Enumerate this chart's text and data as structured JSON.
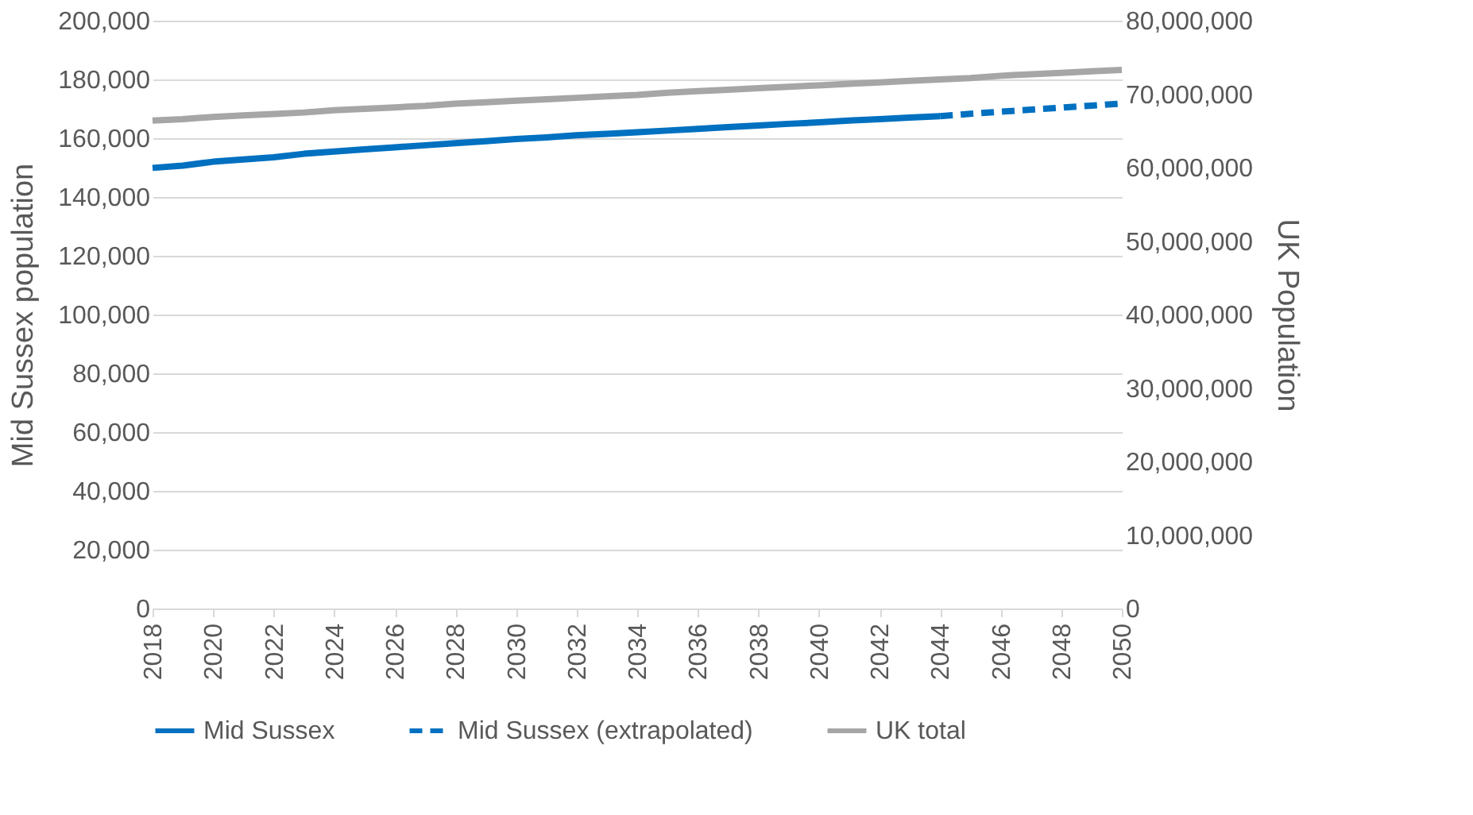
{
  "chart_data": {
    "type": "line",
    "ylabel": "Mid Sussex population",
    "y2label": "UK Population",
    "x": [
      2018,
      2019,
      2020,
      2021,
      2022,
      2023,
      2024,
      2025,
      2026,
      2027,
      2028,
      2029,
      2030,
      2031,
      2032,
      2033,
      2034,
      2035,
      2036,
      2037,
      2038,
      2039,
      2040,
      2041,
      2042,
      2043,
      2044,
      2045,
      2046,
      2047,
      2048,
      2049,
      2050
    ],
    "xlim": [
      2018,
      2050
    ],
    "xticks": [
      2018,
      2020,
      2022,
      2024,
      2026,
      2028,
      2030,
      2032,
      2034,
      2036,
      2038,
      2040,
      2042,
      2044,
      2046,
      2048,
      2050
    ],
    "ylim": [
      0,
      200000
    ],
    "yticks": [
      {
        "value": 0,
        "label": "0"
      },
      {
        "value": 20000,
        "label": "20,000"
      },
      {
        "value": 40000,
        "label": "40,000"
      },
      {
        "value": 60000,
        "label": "60,000"
      },
      {
        "value": 80000,
        "label": "80,000"
      },
      {
        "value": 100000,
        "label": "100,000"
      },
      {
        "value": 120000,
        "label": "120,000"
      },
      {
        "value": 140000,
        "label": "140,000"
      },
      {
        "value": 160000,
        "label": "160,000"
      },
      {
        "value": 180000,
        "label": "180,000"
      },
      {
        "value": 200000,
        "label": "200,000"
      }
    ],
    "y2lim": [
      0,
      80000000
    ],
    "y2ticks": [
      {
        "value": 0,
        "label": "0"
      },
      {
        "value": 10000000,
        "label": "10,000,000"
      },
      {
        "value": 20000000,
        "label": "20,000,000"
      },
      {
        "value": 30000000,
        "label": "30,000,000"
      },
      {
        "value": 40000000,
        "label": "40,000,000"
      },
      {
        "value": 50000000,
        "label": "50,000,000"
      },
      {
        "value": 60000000,
        "label": "60,000,000"
      },
      {
        "value": 70000000,
        "label": "70,000,000"
      },
      {
        "value": 80000000,
        "label": "80,000,000"
      }
    ],
    "grid": "y",
    "legend": "bottom",
    "marker": "none",
    "series": [
      {
        "name": "Mid Sussex",
        "color": "#0070c0",
        "line_style": "solid",
        "values": [
          149900,
          150700,
          152000,
          152800,
          153500,
          154700,
          155500,
          156200,
          156900,
          157600,
          158300,
          159000,
          159700,
          160300,
          161000,
          161500,
          162000,
          162600,
          163200,
          163800,
          164300,
          164900,
          165400,
          166000,
          166500,
          167000,
          167500,
          null,
          null,
          null,
          null,
          null,
          null
        ]
      },
      {
        "name": "Mid Sussex (extrapolated)",
        "color": "#0070c0",
        "line_style": "dashed",
        "values": [
          null,
          null,
          null,
          null,
          null,
          null,
          null,
          null,
          null,
          null,
          null,
          null,
          null,
          null,
          null,
          null,
          null,
          null,
          null,
          null,
          null,
          null,
          null,
          null,
          null,
          null,
          167500,
          168300,
          169000,
          169700,
          170400,
          171100,
          171800
        ]
      },
      {
        "name": "UK total",
        "color": "#a6a6a6",
        "line_style": "solid",
        "axis": "y2",
        "values": [
          66400000,
          66600000,
          66900000,
          67100000,
          67300000,
          67500000,
          67800000,
          68000000,
          68200000,
          68400000,
          68700000,
          68900000,
          69100000,
          69300000,
          69500000,
          69700000,
          69900000,
          70200000,
          70400000,
          70600000,
          70800000,
          71000000,
          71200000,
          71400000,
          71600000,
          71800000,
          72000000,
          72200000,
          72500000,
          72700000,
          72900000,
          73100000,
          73300000
        ]
      }
    ]
  }
}
